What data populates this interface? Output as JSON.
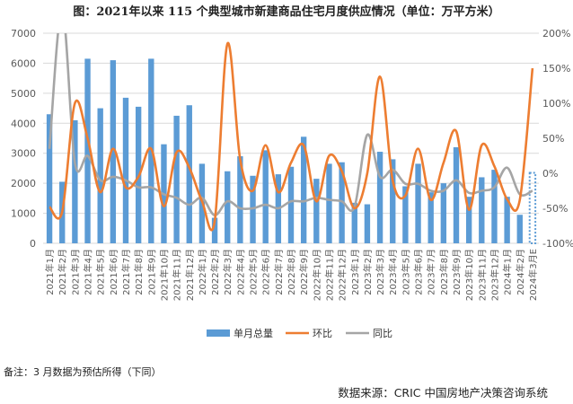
{
  "title": "图：2021年以来 115 个典型城市新建商品住宅月度供应情况（单位：万平方米）",
  "note": "备注：3 月数据为预估所得（下同）",
  "source": "数据来源：CRIC 中国房地产决策咨询系统",
  "colors": {
    "bar": "#5B9BD5",
    "mom": "#ED7D31",
    "yoy": "#A5A5A5",
    "grid": "#D9D9D9",
    "axis_text": "#595959"
  },
  "chart_data": {
    "type": "bar",
    "categories": [
      "2021年1月",
      "2021年2月",
      "2021年3月",
      "2021年4月",
      "2021年5月",
      "2021年6月",
      "2021年7月",
      "2021年8月",
      "2021年9月",
      "2021年10月",
      "2021年11月",
      "2021年12月",
      "2022年1月",
      "2022年2月",
      "2022年3月",
      "2022年4月",
      "2022年5月",
      "2022年6月",
      "2022年7月",
      "2022年8月",
      "2022年9月",
      "2022年10月",
      "2022年11月",
      "2022年12月",
      "2023年1月",
      "2023年2月",
      "2023年3月",
      "2023年4月",
      "2023年5月",
      "2023年6月",
      "2023年7月",
      "2023年8月",
      "2023年9月",
      "2023年10月",
      "2023年11月",
      "2023年12月",
      "2024年1月",
      "2024年2月",
      "2024年3月E"
    ],
    "series": [
      {
        "name": "单月总量",
        "type": "bar",
        "axis": "left",
        "values": [
          4300,
          2050,
          4100,
          6150,
          4500,
          6100,
          4850,
          4550,
          6150,
          3300,
          4250,
          4600,
          2650,
          850,
          2400,
          2900,
          2250,
          3100,
          2300,
          2550,
          3550,
          2150,
          2650,
          2700,
          1350,
          1300,
          3050,
          2800,
          1900,
          2650,
          1700,
          2000,
          3200,
          1550,
          2200,
          2450,
          1550,
          950,
          2350
        ],
        "estimated_index": 38
      },
      {
        "name": "环比",
        "type": "line",
        "axis": "right",
        "values": [
          -48,
          -55,
          100,
          50,
          -27,
          35,
          -20,
          -5,
          35,
          -47,
          30,
          8,
          -40,
          -68,
          185,
          20,
          -25,
          40,
          -27,
          15,
          40,
          -40,
          25,
          3,
          -50,
          0,
          138,
          -10,
          -32,
          35,
          -38,
          15,
          60,
          -52,
          40,
          10,
          -37,
          -38,
          150
        ]
      },
      {
        "name": "同比",
        "type": "line",
        "axis": "right",
        "values": [
          35,
          235,
          15,
          25,
          -10,
          -5,
          -10,
          -20,
          -20,
          -30,
          -35,
          -45,
          -35,
          -60,
          -40,
          -50,
          -50,
          -45,
          -50,
          -40,
          -40,
          -35,
          -38,
          -40,
          -48,
          55,
          -5,
          5,
          -15,
          -15,
          -25,
          -25,
          -10,
          -28,
          -25,
          -20,
          8,
          -30,
          -25
        ]
      }
    ],
    "y_left": {
      "min": 0,
      "max": 7000,
      "step": 1000
    },
    "y_right": {
      "min": -100,
      "max": 200,
      "step": 50,
      "unit": "%"
    },
    "grid": true,
    "legend": "bottom",
    "legend_labels": [
      "单月总量",
      "环比",
      "同比"
    ]
  }
}
